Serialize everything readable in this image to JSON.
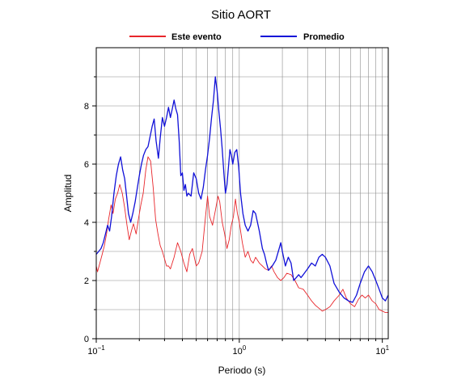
{
  "chart_data": {
    "type": "line",
    "title": "Sitio AORT",
    "xlabel": "Periodo (s)",
    "ylabel": "Amplitud",
    "xscale": "log",
    "xlim": [
      0.1,
      11
    ],
    "ylim": [
      0,
      10
    ],
    "x_ticks": [
      {
        "value": 0.1,
        "base": "10",
        "exp": "−1"
      },
      {
        "value": 1,
        "base": "10",
        "exp": "0"
      },
      {
        "value": 10,
        "base": "10",
        "exp": "1"
      }
    ],
    "y_ticks": [
      0,
      2,
      4,
      6,
      8
    ],
    "grid": true,
    "legend": "top-center",
    "series": [
      {
        "name": "Este evento",
        "color": "#e8262b",
        "points": [
          [
            0.1,
            2.5
          ],
          [
            0.102,
            2.3
          ],
          [
            0.106,
            2.6
          ],
          [
            0.11,
            2.9
          ],
          [
            0.114,
            3.2
          ],
          [
            0.118,
            3.6
          ],
          [
            0.122,
            4.1
          ],
          [
            0.127,
            4.6
          ],
          [
            0.131,
            4.3
          ],
          [
            0.136,
            4.8
          ],
          [
            0.141,
            5.0
          ],
          [
            0.146,
            5.3
          ],
          [
            0.152,
            5.0
          ],
          [
            0.158,
            4.5
          ],
          [
            0.164,
            3.9
          ],
          [
            0.17,
            3.4
          ],
          [
            0.176,
            3.7
          ],
          [
            0.182,
            3.95
          ],
          [
            0.19,
            3.6
          ],
          [
            0.197,
            4.1
          ],
          [
            0.205,
            4.6
          ],
          [
            0.213,
            5.0
          ],
          [
            0.222,
            5.8
          ],
          [
            0.23,
            6.25
          ],
          [
            0.24,
            6.1
          ],
          [
            0.25,
            5.2
          ],
          [
            0.26,
            4.1
          ],
          [
            0.27,
            3.6
          ],
          [
            0.28,
            3.2
          ],
          [
            0.29,
            3.0
          ],
          [
            0.3,
            2.75
          ],
          [
            0.31,
            2.5
          ],
          [
            0.32,
            2.5
          ],
          [
            0.33,
            2.4
          ],
          [
            0.35,
            2.8
          ],
          [
            0.37,
            3.3
          ],
          [
            0.39,
            3.0
          ],
          [
            0.41,
            2.6
          ],
          [
            0.43,
            2.3
          ],
          [
            0.45,
            2.9
          ],
          [
            0.47,
            3.1
          ],
          [
            0.5,
            2.5
          ],
          [
            0.52,
            2.6
          ],
          [
            0.55,
            3.0
          ],
          [
            0.57,
            3.8
          ],
          [
            0.6,
            4.9
          ],
          [
            0.62,
            4.2
          ],
          [
            0.65,
            3.9
          ],
          [
            0.68,
            4.4
          ],
          [
            0.71,
            4.9
          ],
          [
            0.73,
            4.7
          ],
          [
            0.76,
            4.0
          ],
          [
            0.79,
            3.6
          ],
          [
            0.82,
            3.1
          ],
          [
            0.85,
            3.4
          ],
          [
            0.88,
            3.9
          ],
          [
            0.91,
            4.2
          ],
          [
            0.94,
            4.8
          ],
          [
            0.97,
            4.3
          ],
          [
            1.0,
            4.0
          ],
          [
            1.05,
            3.3
          ],
          [
            1.1,
            2.8
          ],
          [
            1.15,
            3.0
          ],
          [
            1.2,
            2.7
          ],
          [
            1.25,
            2.6
          ],
          [
            1.3,
            2.8
          ],
          [
            1.38,
            2.6
          ],
          [
            1.45,
            2.5
          ],
          [
            1.52,
            2.4
          ],
          [
            1.6,
            2.35
          ],
          [
            1.68,
            2.5
          ],
          [
            1.75,
            2.3
          ],
          [
            1.85,
            2.1
          ],
          [
            1.95,
            2.0
          ],
          [
            2.05,
            2.1
          ],
          [
            2.15,
            2.25
          ],
          [
            2.3,
            2.2
          ],
          [
            2.45,
            2.0
          ],
          [
            2.6,
            1.75
          ],
          [
            2.8,
            1.7
          ],
          [
            3.0,
            1.5
          ],
          [
            3.2,
            1.3
          ],
          [
            3.4,
            1.15
          ],
          [
            3.6,
            1.05
          ],
          [
            3.8,
            0.95
          ],
          [
            4.0,
            1.0
          ],
          [
            4.3,
            1.1
          ],
          [
            4.6,
            1.3
          ],
          [
            5.0,
            1.5
          ],
          [
            5.3,
            1.7
          ],
          [
            5.6,
            1.4
          ],
          [
            6.0,
            1.2
          ],
          [
            6.4,
            1.1
          ],
          [
            6.8,
            1.35
          ],
          [
            7.2,
            1.5
          ],
          [
            7.6,
            1.4
          ],
          [
            8.0,
            1.5
          ],
          [
            8.5,
            1.3
          ],
          [
            9.0,
            1.2
          ],
          [
            9.5,
            1.0
          ],
          [
            10.0,
            0.95
          ],
          [
            10.5,
            0.9
          ],
          [
            11.0,
            0.9
          ]
        ]
      },
      {
        "name": "Promedio",
        "color": "#1010d8",
        "points": [
          [
            0.1,
            2.9
          ],
          [
            0.104,
            3.0
          ],
          [
            0.108,
            3.1
          ],
          [
            0.112,
            3.3
          ],
          [
            0.116,
            3.6
          ],
          [
            0.12,
            3.9
          ],
          [
            0.124,
            3.7
          ],
          [
            0.128,
            4.2
          ],
          [
            0.133,
            5.0
          ],
          [
            0.138,
            5.6
          ],
          [
            0.143,
            6.0
          ],
          [
            0.148,
            6.25
          ],
          [
            0.153,
            5.8
          ],
          [
            0.158,
            5.5
          ],
          [
            0.163,
            4.9
          ],
          [
            0.168,
            4.3
          ],
          [
            0.174,
            4.0
          ],
          [
            0.18,
            4.3
          ],
          [
            0.187,
            4.7
          ],
          [
            0.194,
            5.2
          ],
          [
            0.2,
            5.6
          ],
          [
            0.207,
            6.0
          ],
          [
            0.214,
            6.3
          ],
          [
            0.222,
            6.5
          ],
          [
            0.23,
            6.6
          ],
          [
            0.238,
            6.95
          ],
          [
            0.246,
            7.3
          ],
          [
            0.254,
            7.55
          ],
          [
            0.262,
            6.8
          ],
          [
            0.272,
            6.2
          ],
          [
            0.28,
            6.9
          ],
          [
            0.29,
            7.6
          ],
          [
            0.3,
            7.3
          ],
          [
            0.31,
            7.6
          ],
          [
            0.32,
            7.95
          ],
          [
            0.33,
            7.6
          ],
          [
            0.34,
            7.9
          ],
          [
            0.35,
            8.2
          ],
          [
            0.36,
            7.9
          ],
          [
            0.37,
            7.7
          ],
          [
            0.38,
            6.8
          ],
          [
            0.39,
            5.6
          ],
          [
            0.4,
            5.7
          ],
          [
            0.41,
            5.1
          ],
          [
            0.42,
            5.3
          ],
          [
            0.43,
            4.9
          ],
          [
            0.44,
            5.0
          ],
          [
            0.46,
            4.9
          ],
          [
            0.48,
            5.7
          ],
          [
            0.5,
            5.5
          ],
          [
            0.52,
            5.0
          ],
          [
            0.54,
            4.8
          ],
          [
            0.56,
            5.2
          ],
          [
            0.58,
            5.8
          ],
          [
            0.6,
            6.3
          ],
          [
            0.62,
            6.9
          ],
          [
            0.64,
            7.6
          ],
          [
            0.66,
            8.2
          ],
          [
            0.68,
            9.0
          ],
          [
            0.7,
            8.5
          ],
          [
            0.72,
            7.8
          ],
          [
            0.74,
            7.2
          ],
          [
            0.76,
            6.5
          ],
          [
            0.78,
            5.7
          ],
          [
            0.8,
            5.0
          ],
          [
            0.82,
            5.3
          ],
          [
            0.84,
            5.9
          ],
          [
            0.86,
            6.5
          ],
          [
            0.88,
            6.3
          ],
          [
            0.9,
            6.0
          ],
          [
            0.93,
            6.4
          ],
          [
            0.96,
            6.5
          ],
          [
            0.99,
            5.9
          ],
          [
            1.02,
            5.0
          ],
          [
            1.06,
            4.3
          ],
          [
            1.1,
            3.9
          ],
          [
            1.15,
            3.7
          ],
          [
            1.2,
            3.9
          ],
          [
            1.25,
            4.4
          ],
          [
            1.3,
            4.3
          ],
          [
            1.38,
            3.7
          ],
          [
            1.45,
            3.1
          ],
          [
            1.5,
            2.9
          ],
          [
            1.55,
            2.6
          ],
          [
            1.6,
            2.35
          ],
          [
            1.7,
            2.5
          ],
          [
            1.8,
            2.7
          ],
          [
            1.9,
            3.1
          ],
          [
            1.95,
            3.3
          ],
          [
            2.0,
            3.0
          ],
          [
            2.1,
            2.5
          ],
          [
            2.2,
            2.8
          ],
          [
            2.3,
            2.6
          ],
          [
            2.4,
            2.0
          ],
          [
            2.5,
            2.1
          ],
          [
            2.6,
            2.2
          ],
          [
            2.7,
            2.1
          ],
          [
            2.8,
            2.2
          ],
          [
            3.0,
            2.4
          ],
          [
            3.2,
            2.6
          ],
          [
            3.4,
            2.5
          ],
          [
            3.6,
            2.8
          ],
          [
            3.8,
            2.9
          ],
          [
            4.0,
            2.8
          ],
          [
            4.3,
            2.5
          ],
          [
            4.6,
            1.9
          ],
          [
            5.0,
            1.6
          ],
          [
            5.4,
            1.4
          ],
          [
            5.8,
            1.3
          ],
          [
            6.2,
            1.25
          ],
          [
            6.6,
            1.5
          ],
          [
            7.0,
            1.9
          ],
          [
            7.5,
            2.3
          ],
          [
            8.0,
            2.5
          ],
          [
            8.5,
            2.3
          ],
          [
            9.0,
            2.0
          ],
          [
            9.5,
            1.7
          ],
          [
            10.0,
            1.4
          ],
          [
            10.5,
            1.3
          ],
          [
            11.0,
            1.5
          ]
        ]
      }
    ]
  }
}
